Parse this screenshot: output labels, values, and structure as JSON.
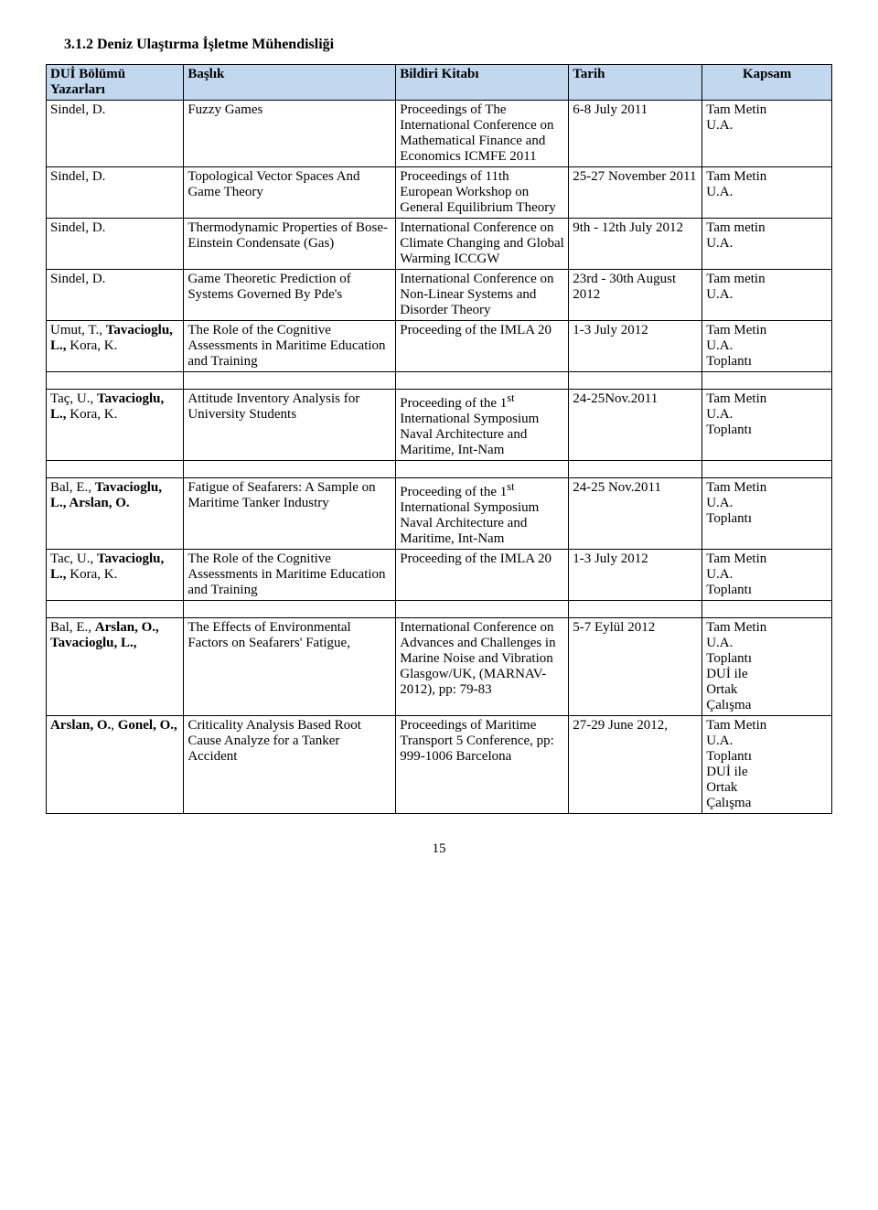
{
  "section_title": "3.1.2 Deniz Ulaştırma İşletme Mühendisliği",
  "headers": {
    "authors": "DUİ Bölümü Yazarları",
    "title": "Başlık",
    "proc": "Bildiri Kitabı",
    "date": "Tarih",
    "scope": "Kapsam"
  },
  "rows": [
    {
      "authors": "Sindel, D.",
      "title": "Fuzzy Games",
      "proc": "Proceedings of The International Conference on Mathematical Finance and Economics ICMFE 2011",
      "date": "6-8 July 2011",
      "scope": "Tam Metin\nU.A."
    },
    {
      "authors": "Sindel, D.",
      "title": "Topological Vector Spaces And Game Theory",
      "proc": "Proceedings of 11th European Workshop on General Equilibrium Theory",
      "date": "25-27 November 2011",
      "scope": "Tam Metin\nU.A."
    },
    {
      "authors": "Sindel, D.",
      "title": "Thermodynamic Properties of Bose-Einstein Condensate (Gas)",
      "proc": "International Conference on Climate Changing and Global Warming ICCGW",
      "date": "9th - 12th July 2012",
      "scope": "Tam metin\nU.A."
    },
    {
      "authors": "Sindel, D.",
      "title": "Game Theoretic Prediction of Systems Governed By Pde's",
      "proc": "International Conference on Non-Linear Systems and Disorder Theory",
      "date": "23rd - 30th August 2012",
      "scope": "Tam metin\nU.A."
    },
    {
      "authors_html": "Umut, T., <b>Tavacioglu, L.,</b> Kora, K.",
      "title": "The Role of the Cognitive Assessments in Maritime Education and Training",
      "proc": "Proceeding of the IMLA 20",
      "date": "1-3 July 2012",
      "scope": "Tam Metin\nU.A.\nToplantı"
    },
    {
      "authors_html": "Taç, U., <b>Tavacioglu, L.,</b> Kora, K.",
      "title": "Attitude Inventory Analysis for University Students",
      "proc_html": "Proceeding of the 1<sup>st</sup> International Symposium Naval Architecture and Maritime, Int-Nam",
      "date": "24-25Nov.2011",
      "scope": "Tam Metin\nU.A.\nToplantı",
      "spacer_before": true
    },
    {
      "authors_html": "Bal, E., <b>Tavacioglu, L., Arslan, O.</b>",
      "title": "Fatigue of Seafarers: A Sample on Maritime Tanker Industry",
      "proc_html": "Proceeding of the 1<sup>st</sup> International Symposium Naval Architecture and Maritime, Int-Nam",
      "date": "24-25 Nov.2011",
      "scope": "Tam Metin\nU.A.\nToplantı",
      "spacer_before": true
    },
    {
      "authors_html": "Tac, U., <b>Tavacioglu, L.,</b> Kora, K.",
      "title": "The Role of the Cognitive Assessments in Maritime Education and Training",
      "proc": "Proceeding of the IMLA 20",
      "date": "1-3 July 2012",
      "scope": "Tam Metin\nU.A.\nToplantı"
    },
    {
      "authors_html": "Bal, E., <b>Arslan, O., Tavacioglu, L.,</b>",
      "title": "The Effects of Environmental Factors on Seafarers' Fatigue,",
      "proc": "International Conference on Advances and Challenges in Marine Noise and Vibration Glasgow/UK, (MARNAV-2012), pp: 79-83",
      "date": "5-7 Eylül 2012",
      "scope": "Tam Metin\nU.A.\nToplantı\nDUİ ile\nOrtak\nÇalışma",
      "spacer_before": true
    },
    {
      "authors_html": "<b>Arslan, O.</b>, <b>Gonel, O.,</b>",
      "title": "Criticality Analysis Based Root Cause Analyze for a Tanker Accident",
      "proc": "Proceedings of Maritime Transport 5 Conference, pp: 999-1006 Barcelona",
      "date": "27-29 June 2012,",
      "scope": "Tam Metin\nU.A.\nToplantı\nDUİ ile\nOrtak\nÇalışma"
    }
  ],
  "page_number": "15",
  "colors": {
    "header_bg": "#c1d8ef",
    "border": "#000000",
    "text": "#000000",
    "background": "#ffffff"
  }
}
